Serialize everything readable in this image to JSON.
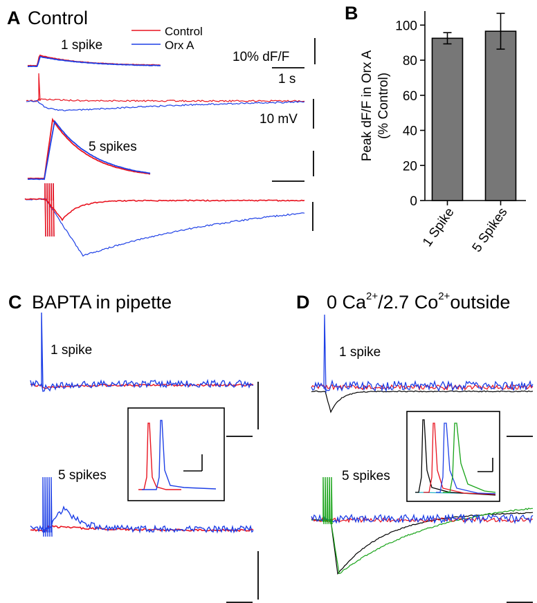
{
  "colors": {
    "control": "#e8121e",
    "orx": "#1d3fe6",
    "black": "#000000",
    "green": "#17a317",
    "bar": "#777777"
  },
  "panels": {
    "A": {
      "letter": "A",
      "title": "Control",
      "labels": {
        "one_spike": "1 spike",
        "five_spikes": "5 spikes"
      },
      "legend": [
        {
          "label": "Control",
          "color": "#e8121e"
        },
        {
          "label": "Orx A",
          "color": "#1d3fe6"
        }
      ],
      "scale": {
        "dff": "10% dF/F",
        "time": "1 s",
        "mv": "10 mV"
      }
    },
    "B": {
      "letter": "B"
    },
    "C": {
      "letter": "C",
      "title": "BAPTA in pipette",
      "labels": {
        "one_spike": "1 spike",
        "five_spikes": "5 spikes"
      }
    },
    "D": {
      "letter": "D",
      "title_parts": [
        "0 Ca",
        "2+",
        "/2.7 Co",
        "2+",
        "outside"
      ],
      "labels": {
        "one_spike": "1 spike",
        "five_spikes": "5 spikes"
      }
    }
  },
  "chart_data": {
    "type": "bar",
    "categories": [
      "1 Spike",
      "5 Spikes"
    ],
    "values": [
      92.5,
      96.5
    ],
    "errors": [
      3.2,
      10.2
    ],
    "ylabel": "Peak dF/F in Orx A\n(% Control)",
    "ylim": [
      0,
      108
    ],
    "yticks": [
      0,
      20,
      40,
      60,
      80,
      100
    ],
    "grid": false
  }
}
